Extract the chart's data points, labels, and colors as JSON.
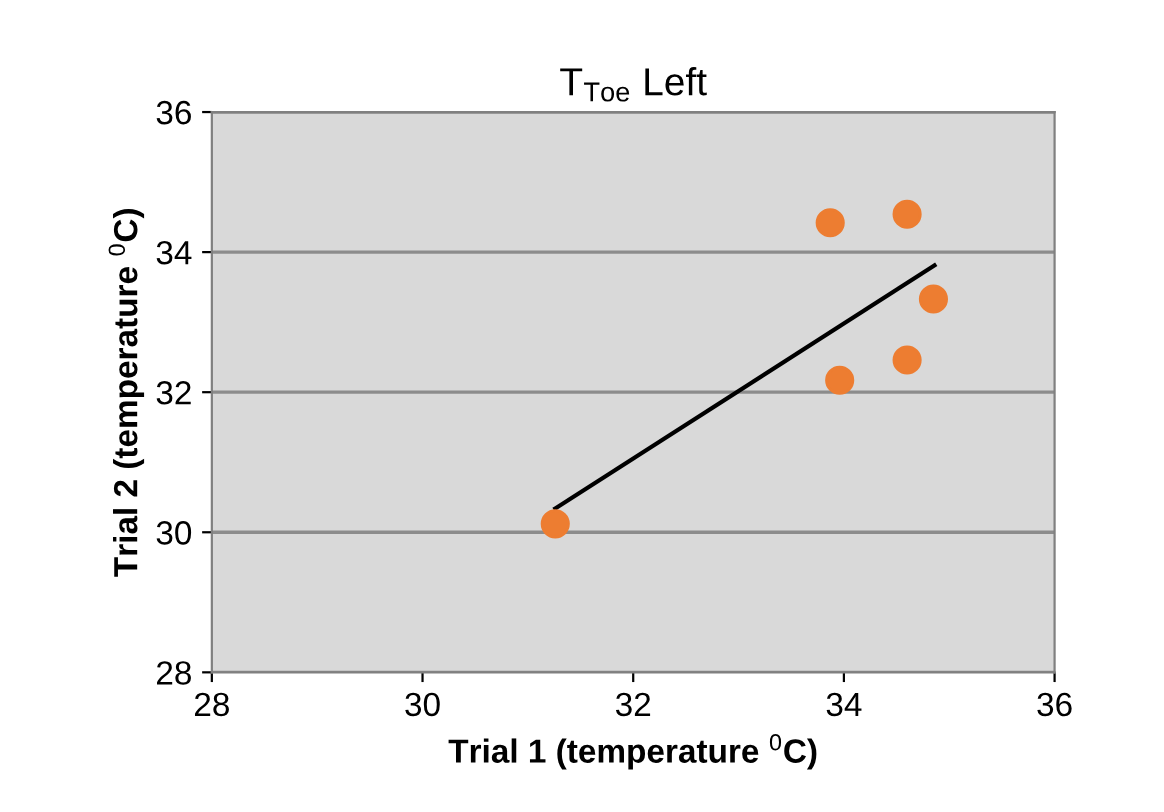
{
  "chart_data": {
    "type": "scatter",
    "title": "T$_{Toe}$ Left",
    "xlabel": "Trial 1 (temperature $^{0}$C)",
    "ylabel": "Trial 2 (temperature $^{0}$C)",
    "x": [
      31.26,
      33.87,
      34.6,
      34.85,
      33.96,
      34.6
    ],
    "series": [
      {
        "color": "#ed7d31",
        "marker": "circle",
        "values": [
          30.12,
          34.42,
          34.54,
          33.33,
          32.17,
          32.46
        ]
      },
      {
        "type": "line",
        "color": "#000000",
        "marker": "none",
        "x": [
          31.26,
          34.86
        ],
        "values": [
          30.34,
          33.81
        ]
      }
    ],
    "xlim": [
      28,
      36
    ],
    "ylim": [
      28,
      36
    ],
    "xticks": [
      28,
      30,
      32,
      34,
      36
    ],
    "yticks": [
      28,
      30,
      32,
      34,
      36
    ],
    "grid": "y",
    "legend": false
  }
}
